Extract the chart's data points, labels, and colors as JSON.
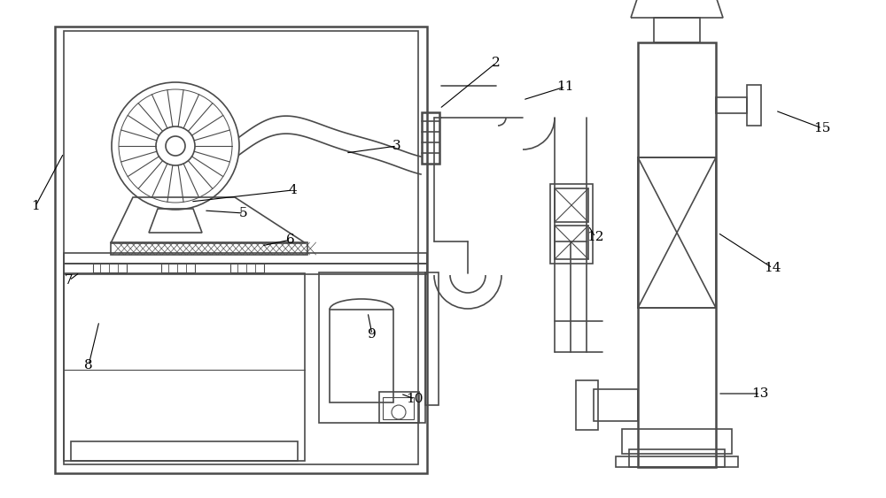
{
  "bg_color": "#ffffff",
  "lc": "#4a4a4a",
  "lw": 1.2,
  "lw2": 1.8,
  "fig_width": 10.0,
  "fig_height": 5.63
}
